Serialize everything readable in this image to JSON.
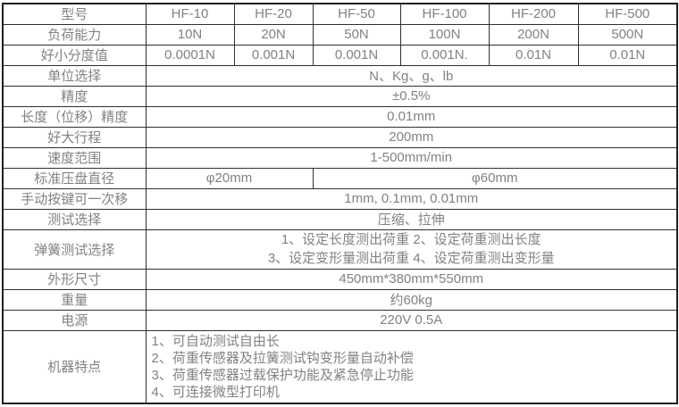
{
  "spec": {
    "model_row": {
      "label": "型号",
      "cells": [
        "HF-10",
        "HF-20",
        "HF-50",
        "HF-100",
        "HF-200",
        "HF-500"
      ]
    },
    "capacity_row": {
      "label": "负荷能力",
      "cells": [
        "10N",
        "20N",
        "50N",
        "100N",
        "200N",
        "500N"
      ]
    },
    "resolution_row": {
      "label": "好小分度值",
      "cells": [
        "0.0001N",
        "0.001N",
        "0.001N",
        "0.001N.",
        "0.01N",
        "0.01N"
      ]
    },
    "unit_row": {
      "label": "单位选择",
      "value": "N、Kg、g、lb"
    },
    "accuracy_row": {
      "label": "精度",
      "value": "±0.5%"
    },
    "length_accuracy_row": {
      "label": "长度（位移）精度",
      "value": "0.01mm"
    },
    "stroke_row": {
      "label": "好大行程",
      "value": "200mm"
    },
    "speed_row": {
      "label": "速度范围",
      "value": "1-500mm/min"
    },
    "platen_row": {
      "label": "标准压盘直径",
      "small_value": "φ20mm",
      "large_value": "φ60mm"
    },
    "manual_step_row": {
      "label": "手动按键可一次移",
      "value": "1mm, 0.1mm, 0.01mm"
    },
    "test_mode_row": {
      "label": "测试选择",
      "value": "压缩、拉伸"
    },
    "spring_test_row": {
      "label": "弹簧测试选择",
      "line1": "1、设定长度测出荷重 2、设定荷重测出长度",
      "line2": "3、设定变形量测出荷重 4、设定荷重测出变形量"
    },
    "dimensions_row": {
      "label": "外形尺寸",
      "value": "450mm*380mm*550mm"
    },
    "weight_row": {
      "label": "重量",
      "value": "约60kg"
    },
    "power_row": {
      "label": "电源",
      "value": "220V 0.5A"
    },
    "features_row": {
      "label": "机器特点",
      "items": [
        "1、可自动测试自由长",
        "2、荷重传感器及拉簧测试钩变形量自动补偿",
        "3、荷重传感器过载保护功能及紧急停止功能",
        "4、可连接微型打印机"
      ]
    }
  },
  "colors": {
    "border": "#2a2a2a",
    "text": "#828282",
    "background": "#ffffff"
  }
}
